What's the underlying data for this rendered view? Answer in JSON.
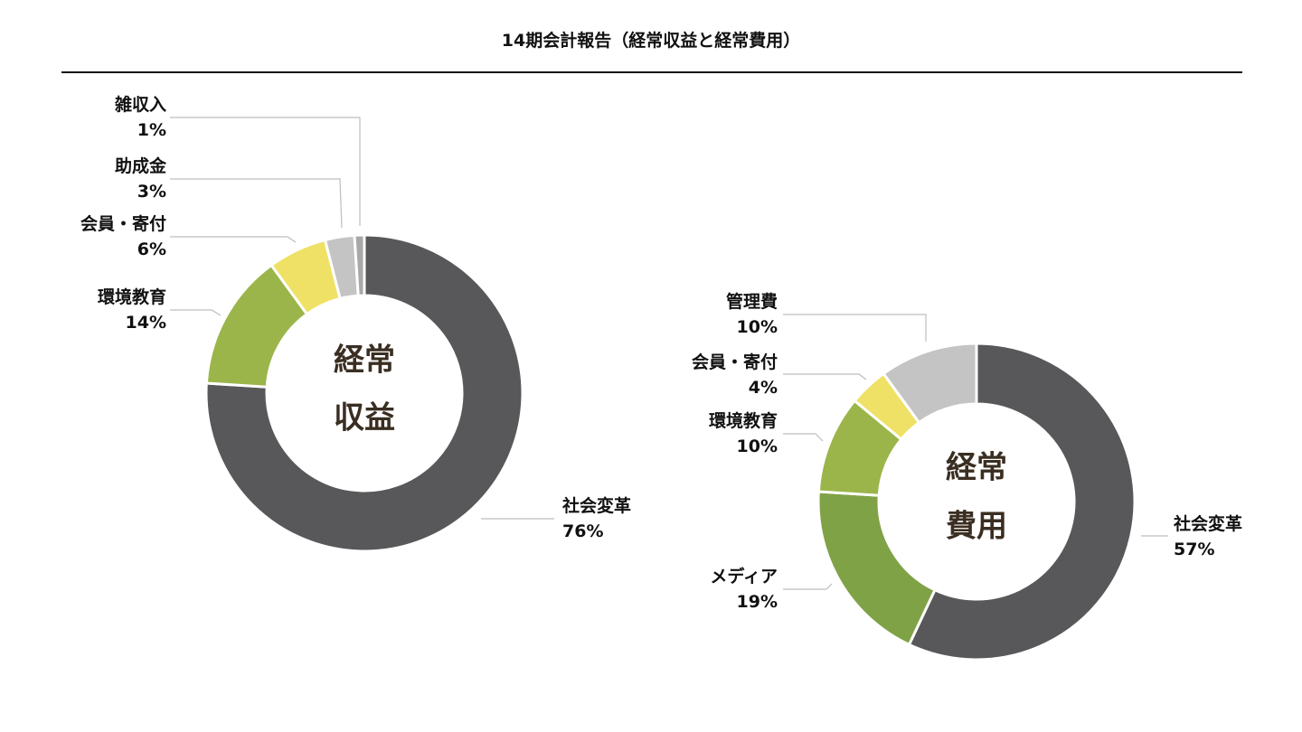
{
  "title": "14期会計報告（経常収益と経常費用）",
  "chart_data": [
    {
      "type": "pie",
      "variant": "donut",
      "center_label": [
        "経常",
        "収益"
      ],
      "slices": [
        {
          "label": "社会変革",
          "value": 76,
          "value_label": "76%",
          "color": "#58585a"
        },
        {
          "label": "環境教育",
          "value": 14,
          "value_label": "14%",
          "color": "#9bb54a"
        },
        {
          "label": "会員・寄付",
          "value": 6,
          "value_label": "6%",
          "color": "#efe165"
        },
        {
          "label": "助成金",
          "value": 3,
          "value_label": "3%",
          "color": "#c4c4c4"
        },
        {
          "label": "雑収入",
          "value": 1,
          "value_label": "1%",
          "color": "#a8a8a8"
        }
      ]
    },
    {
      "type": "pie",
      "variant": "donut",
      "center_label": [
        "経常",
        "費用"
      ],
      "slices": [
        {
          "label": "社会変革",
          "value": 57,
          "value_label": "57%",
          "color": "#58585a"
        },
        {
          "label": "メディア",
          "value": 19,
          "value_label": "19%",
          "color": "#7fa246"
        },
        {
          "label": "環境教育",
          "value": 10,
          "value_label": "10%",
          "color": "#9bb54a"
        },
        {
          "label": "会員・寄付",
          "value": 4,
          "value_label": "4%",
          "color": "#efe165"
        },
        {
          "label": "管理費",
          "value": 10,
          "value_label": "10%",
          "color": "#c4c4c4"
        }
      ]
    }
  ]
}
